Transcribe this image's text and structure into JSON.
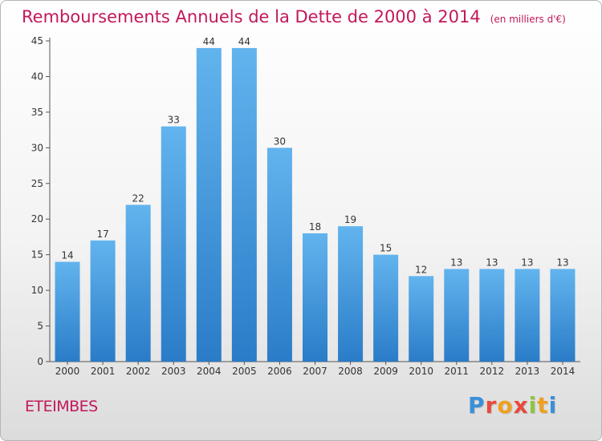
{
  "header": {
    "title": "Remboursements Annuels de la Dette de 2000 à 2014",
    "unit": "(en milliers d'€)"
  },
  "footer": {
    "commune": "ETEIMBES",
    "brand": "Proxiti",
    "brand_colors": [
      "#3a8fd9",
      "#e84a3c",
      "#f0a020",
      "#e84a3c",
      "#8cc63f",
      "#f0a020",
      "#3a8fd9"
    ]
  },
  "colors": {
    "title": "#c2185b",
    "bar_top": "#62b4ee",
    "bar_bottom": "#2a7cc8",
    "axis": "#555555"
  },
  "chart_data": {
    "type": "bar",
    "title": "Remboursements Annuels de la Dette de 2000 à 2014",
    "subtitle": "(en milliers d'€)",
    "xlabel": "",
    "ylabel": "",
    "categories": [
      "2000",
      "2001",
      "2002",
      "2003",
      "2004",
      "2005",
      "2006",
      "2007",
      "2008",
      "2009",
      "2010",
      "2011",
      "2012",
      "2013",
      "2014"
    ],
    "values": [
      14,
      17,
      22,
      33,
      44,
      44,
      30,
      18,
      19,
      15,
      12,
      13,
      13,
      13,
      13
    ],
    "ylim": [
      0,
      45
    ],
    "yticks": [
      0,
      5,
      10,
      15,
      20,
      25,
      30,
      35,
      40,
      45
    ],
    "grid": false,
    "data_labels": true
  }
}
